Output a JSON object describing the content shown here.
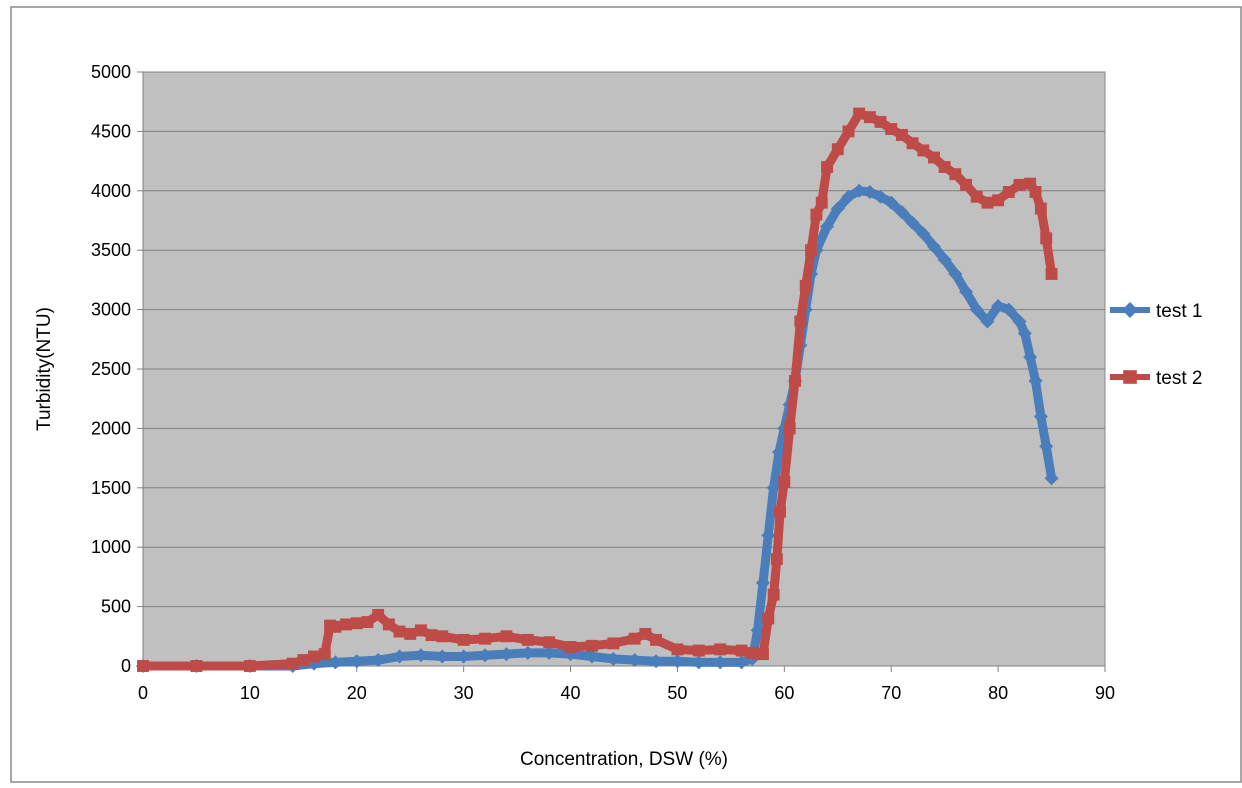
{
  "chart_data": {
    "type": "line",
    "title": "",
    "xlabel": "Concentration, DSW (%)",
    "ylabel": "Turbidity(NTU)",
    "xlim": [
      0,
      90
    ],
    "ylim": [
      0,
      5000
    ],
    "xticks": [
      0,
      10,
      20,
      30,
      40,
      50,
      60,
      70,
      80,
      90
    ],
    "yticks": [
      0,
      500,
      1000,
      1500,
      2000,
      2500,
      3000,
      3500,
      4000,
      4500,
      5000
    ],
    "xtick_labels": [
      "0",
      "10",
      "20",
      "30",
      "40",
      "50",
      "60",
      "70",
      "80",
      "90"
    ],
    "ytick_labels": [
      "0",
      "500",
      "1000",
      "1500",
      "2000",
      "2500",
      "3000",
      "3500",
      "4000",
      "4500",
      "5000"
    ],
    "grid": "horizontal",
    "legend": "right",
    "plot_background": "#c0c0c0",
    "series": [
      {
        "name": "test 1",
        "color": "#4a7ebb",
        "marker": "diamond",
        "x": [
          0,
          5,
          10,
          14,
          16,
          18,
          20,
          22,
          24,
          26,
          28,
          30,
          32,
          34,
          36,
          38,
          40,
          42,
          44,
          46,
          48,
          50,
          52,
          54,
          56,
          57,
          57.5,
          58,
          58.5,
          59,
          59.5,
          60,
          60.5,
          61,
          61.5,
          62,
          62.5,
          63,
          64,
          65,
          66,
          67,
          68,
          69,
          70,
          71,
          72,
          73,
          74,
          75,
          76,
          77,
          78,
          79,
          80,
          81,
          82,
          82.5,
          83,
          83.5,
          84,
          84.5,
          85
        ],
        "y": [
          0,
          0,
          0,
          0,
          20,
          30,
          40,
          50,
          80,
          90,
          80,
          80,
          90,
          100,
          110,
          110,
          100,
          80,
          60,
          50,
          40,
          40,
          30,
          30,
          30,
          60,
          300,
          700,
          1100,
          1500,
          1800,
          2000,
          2200,
          2400,
          2700,
          3000,
          3300,
          3500,
          3700,
          3850,
          3950,
          4000,
          3990,
          3950,
          3900,
          3820,
          3730,
          3640,
          3530,
          3420,
          3300,
          3150,
          3000,
          2900,
          3030,
          3000,
          2900,
          2800,
          2600,
          2400,
          2100,
          1850,
          1580
        ]
      },
      {
        "name": "test 2",
        "color": "#be4b48",
        "marker": "square",
        "x": [
          0,
          5,
          10,
          14,
          15,
          16,
          17,
          17.5,
          18,
          19,
          20,
          21,
          22,
          23,
          24,
          25,
          26,
          27,
          28,
          30,
          32,
          34,
          36,
          38,
          40,
          42,
          44,
          46,
          47,
          48,
          50,
          52,
          54,
          56,
          57,
          58,
          58.5,
          59,
          59.3,
          59.6,
          60,
          60.5,
          61,
          61.5,
          62,
          62.5,
          63,
          63.5,
          64,
          65,
          66,
          67,
          68,
          69,
          70,
          71,
          72,
          73,
          74,
          75,
          76,
          77,
          78,
          79,
          80,
          81,
          82,
          83,
          83.5,
          84,
          84.5,
          85
        ],
        "y": [
          0,
          0,
          0,
          20,
          50,
          80,
          100,
          340,
          330,
          350,
          360,
          370,
          430,
          350,
          290,
          270,
          300,
          260,
          250,
          220,
          230,
          250,
          220,
          200,
          160,
          170,
          190,
          230,
          270,
          220,
          140,
          130,
          140,
          130,
          110,
          100,
          400,
          600,
          900,
          1300,
          1550,
          2000,
          2400,
          2900,
          3200,
          3500,
          3800,
          3900,
          4200,
          4350,
          4500,
          4650,
          4620,
          4580,
          4520,
          4470,
          4400,
          4340,
          4280,
          4200,
          4140,
          4050,
          3950,
          3900,
          3920,
          3990,
          4050,
          4060,
          3990,
          3850,
          3600,
          3300
        ]
      }
    ]
  }
}
